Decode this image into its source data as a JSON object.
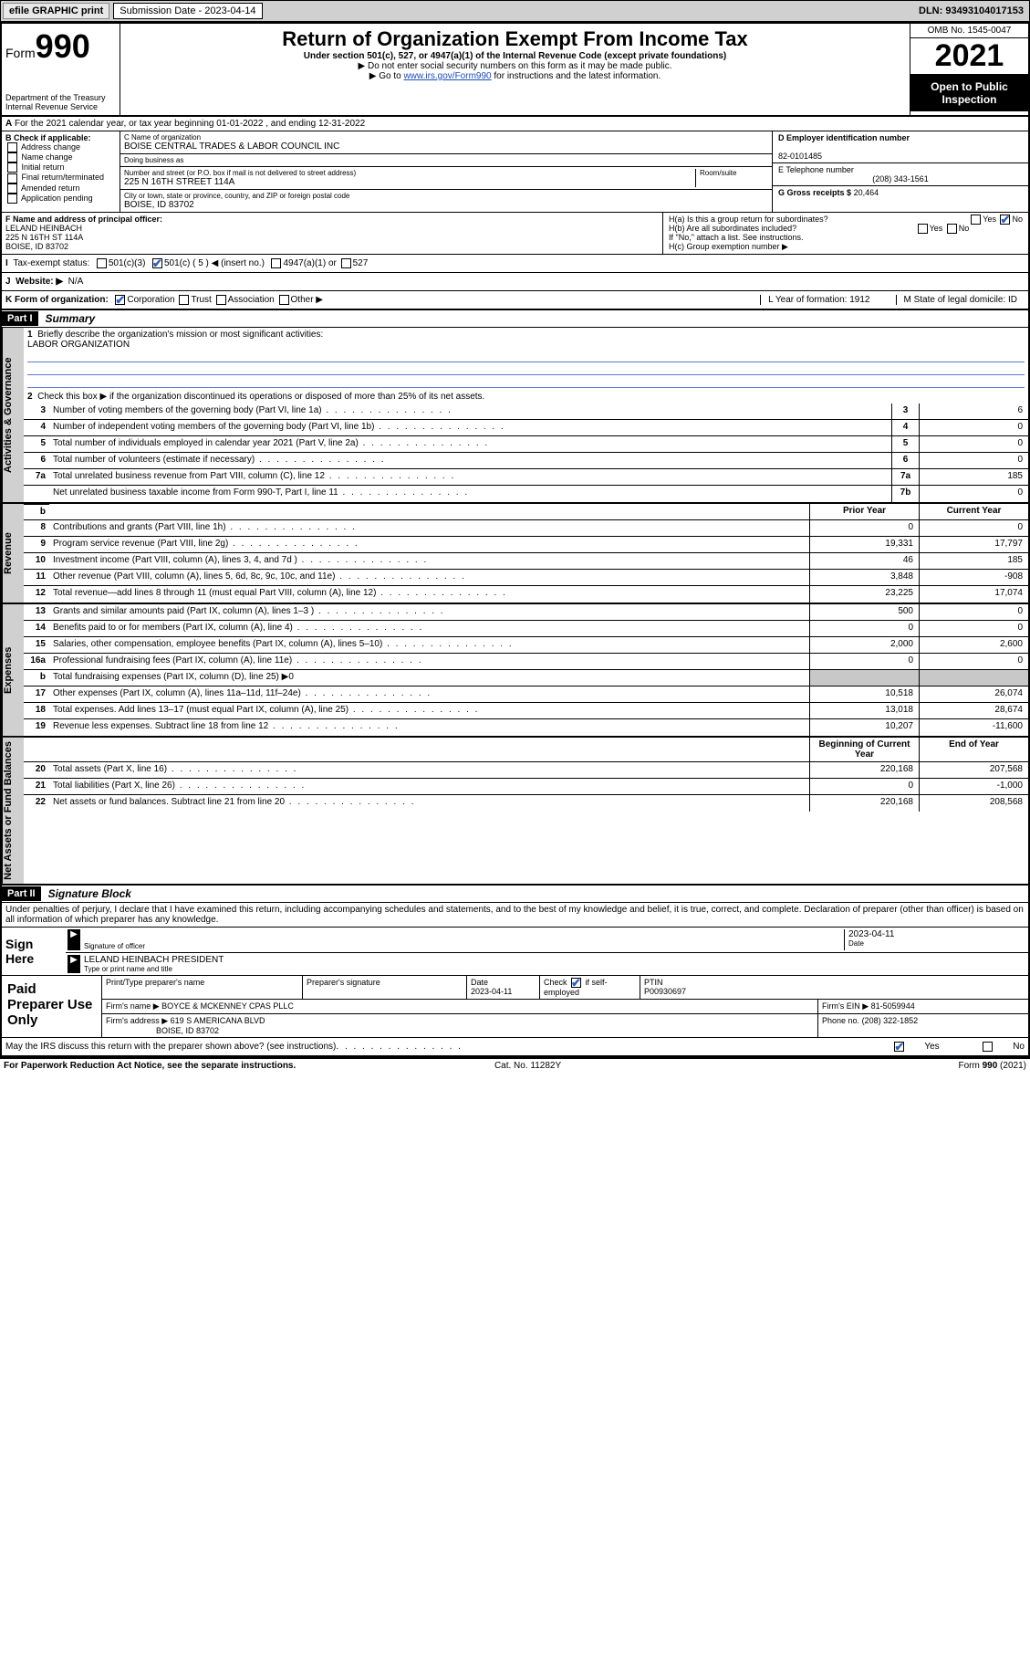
{
  "topbar": {
    "efile": "efile GRAPHIC print",
    "submission_label": "Submission Date - 2023-04-14",
    "dln": "DLN: 93493104017153"
  },
  "header": {
    "form_label": "Form",
    "form_number": "990",
    "dept": "Department of the Treasury",
    "irs": "Internal Revenue Service",
    "title": "Return of Organization Exempt From Income Tax",
    "subtitle": "Under section 501(c), 527, or 4947(a)(1) of the Internal Revenue Code (except private foundations)",
    "note1": "▶ Do not enter social security numbers on this form as it may be made public.",
    "note2_a": "▶ Go to ",
    "note2_link": "www.irs.gov/Form990",
    "note2_b": " for instructions and the latest information.",
    "omb": "OMB No. 1545-0047",
    "year": "2021",
    "open_public": "Open to Public Inspection"
  },
  "row_a": "For the 2021 calendar year, or tax year beginning 01-01-2022   , and ending 12-31-2022",
  "col_b": {
    "label": "B Check if applicable:",
    "opts": [
      "Address change",
      "Name change",
      "Initial return",
      "Final return/terminated",
      "Amended return",
      "Application pending"
    ]
  },
  "col_c": {
    "name_lbl": "C Name of organization",
    "name_val": "BOISE CENTRAL TRADES & LABOR COUNCIL INC",
    "dba_lbl": "Doing business as",
    "dba_val": "",
    "street_lbl": "Number and street (or P.O. box if mail is not delivered to street address)",
    "room_lbl": "Room/suite",
    "street_val": "225 N 16TH STREET 114A",
    "city_lbl": "City or town, state or province, country, and ZIP or foreign postal code",
    "city_val": "BOISE, ID  83702"
  },
  "col_d": {
    "ein_lbl": "D Employer identification number",
    "ein_val": "82-0101485",
    "tel_lbl": "E Telephone number",
    "tel_val": "(208) 343-1561",
    "gross_lbl": "G Gross receipts $",
    "gross_val": "20,464"
  },
  "row_f": {
    "lbl": "F Name and address of principal officer:",
    "name": "LELAND HEINBACH",
    "street": "225 N 16TH ST 114A",
    "city": "BOISE, ID  83702"
  },
  "row_h": {
    "ha": "H(a)  Is this a group return for subordinates?",
    "hb": "H(b)  Are all subordinates included?",
    "hb_note": "If \"No,\" attach a list. See instructions.",
    "hc": "H(c)  Group exemption number ▶"
  },
  "row_i": {
    "lbl": "Tax-exempt status:",
    "o1": "501(c)(3)",
    "o2": "501(c) ( 5 ) ◀ (insert no.)",
    "o3": "4947(a)(1) or",
    "o4": "527"
  },
  "row_j": {
    "lbl": "Website: ▶",
    "val": "N/A"
  },
  "row_k": {
    "lbl": "K Form of organization:",
    "opts": [
      "Corporation",
      "Trust",
      "Association",
      "Other ▶"
    ],
    "l_lbl": "L Year of formation: 1912",
    "m_lbl": "M State of legal domicile: ID"
  },
  "part1": {
    "hdr": "Part I",
    "title": "Summary"
  },
  "summary": {
    "tab1": "Activities & Governance",
    "tab2": "Revenue",
    "tab3": "Expenses",
    "tab4": "Net Assets or Fund Balances",
    "l1": "Briefly describe the organization's mission or most significant activities:",
    "l1_val": "LABOR ORGANIZATION",
    "l2": "Check this box ▶         if the organization discontinued its operations or disposed of more than 25% of its net assets.",
    "lines_gov": [
      {
        "n": "3",
        "d": "Number of voting members of the governing body (Part VI, line 1a)",
        "box": "3",
        "v": "6"
      },
      {
        "n": "4",
        "d": "Number of independent voting members of the governing body (Part VI, line 1b)",
        "box": "4",
        "v": "0"
      },
      {
        "n": "5",
        "d": "Total number of individuals employed in calendar year 2021 (Part V, line 2a)",
        "box": "5",
        "v": "0"
      },
      {
        "n": "6",
        "d": "Total number of volunteers (estimate if necessary)",
        "box": "6",
        "v": "0"
      },
      {
        "n": "7a",
        "d": "Total unrelated business revenue from Part VIII, column (C), line 12",
        "box": "7a",
        "v": "185"
      },
      {
        "n": "",
        "d": "Net unrelated business taxable income from Form 990-T, Part I, line 11",
        "box": "7b",
        "v": "0"
      }
    ],
    "col_hdr_prior": "Prior Year",
    "col_hdr_curr": "Current Year",
    "lines_rev": [
      {
        "n": "8",
        "d": "Contributions and grants (Part VIII, line 1h)",
        "p": "0",
        "c": "0"
      },
      {
        "n": "9",
        "d": "Program service revenue (Part VIII, line 2g)",
        "p": "19,331",
        "c": "17,797"
      },
      {
        "n": "10",
        "d": "Investment income (Part VIII, column (A), lines 3, 4, and 7d )",
        "p": "46",
        "c": "185"
      },
      {
        "n": "11",
        "d": "Other revenue (Part VIII, column (A), lines 5, 6d, 8c, 9c, 10c, and 11e)",
        "p": "3,848",
        "c": "-908"
      },
      {
        "n": "12",
        "d": "Total revenue—add lines 8 through 11 (must equal Part VIII, column (A), line 12)",
        "p": "23,225",
        "c": "17,074"
      }
    ],
    "lines_exp": [
      {
        "n": "13",
        "d": "Grants and similar amounts paid (Part IX, column (A), lines 1–3 )",
        "p": "500",
        "c": "0"
      },
      {
        "n": "14",
        "d": "Benefits paid to or for members (Part IX, column (A), line 4)",
        "p": "0",
        "c": "0"
      },
      {
        "n": "15",
        "d": "Salaries, other compensation, employee benefits (Part IX, column (A), lines 5–10)",
        "p": "2,000",
        "c": "2,600"
      },
      {
        "n": "16a",
        "d": "Professional fundraising fees (Part IX, column (A), line 11e)",
        "p": "0",
        "c": "0"
      },
      {
        "n": "b",
        "d": "Total fundraising expenses (Part IX, column (D), line 25) ▶0",
        "p": "",
        "c": "",
        "shade": true
      },
      {
        "n": "17",
        "d": "Other expenses (Part IX, column (A), lines 11a–11d, 11f–24e)",
        "p": "10,518",
        "c": "26,074"
      },
      {
        "n": "18",
        "d": "Total expenses. Add lines 13–17 (must equal Part IX, column (A), line 25)",
        "p": "13,018",
        "c": "28,674"
      },
      {
        "n": "19",
        "d": "Revenue less expenses. Subtract line 18 from line 12",
        "p": "10,207",
        "c": "-11,600"
      }
    ],
    "col_hdr_beg": "Beginning of Current Year",
    "col_hdr_end": "End of Year",
    "lines_net contrary": [
      {
        "n": "20",
        "d": "Total assets (Part X, line 16)",
        "p": "220,168",
        "c": "207,568"
      },
      {
        "n": "21",
        "d": "Total liabilities (Part X, line 26)",
        "p": "0",
        "c": "-1,000"
      },
      {
        "n": "22",
        "d": "Net assets or fund balances. Subtract line 21 from line 20",
        "p": "220,168",
        "c": "208,568"
      }
    ],
    "lines_net": [
      {
        "n": "20",
        "d": "Total assets (Part X, line 16)",
        "p": "220,168",
        "c": "207,568"
      },
      {
        "n": "21",
        "d": "Total liabilities (Part X, line 26)",
        "p": "0",
        "c": "-1,000"
      },
      {
        "n": "22",
        "d": "Net assets or fund balances. Subtract line 21 from line 20",
        "p": "220,168",
        "c": "208,568"
      }
    ]
  },
  "part2": {
    "hdr": "Part II",
    "title": "Signature Block"
  },
  "penalties": "Under penalties of perjury, I declare that I have examined this return, including accompanying schedules and statements, and to the best of my knowledge and belief, it is true, correct, and complete. Declaration of preparer (other than officer) is based on all information of which preparer has any knowledge.",
  "sign": {
    "lbl": "Sign Here",
    "sig_officer": "Signature of officer",
    "date": "2023-04-11",
    "date_lbl": "Date",
    "name": "LELAND HEINBACH  PRESIDENT",
    "name_lbl": "Type or print name and title"
  },
  "prep": {
    "lbl": "Paid Preparer Use Only",
    "h1": "Print/Type preparer's name",
    "h2": "Preparer's signature",
    "h3": "Date",
    "h3v": "2023-04-11",
    "h4": "Check          if self-employed",
    "h5": "PTIN",
    "h5v": "P00930697",
    "firm_name_lbl": "Firm's name     ▶",
    "firm_name": "BOYCE & MCKENNEY CPAS PLLC",
    "firm_ein_lbl": "Firm's EIN ▶",
    "firm_ein": "81-5059944",
    "firm_addr_lbl": "Firm's address ▶",
    "firm_addr1": "619 S AMERICANA BLVD",
    "firm_addr2": "BOISE, ID  83702",
    "phone_lbl": "Phone no.",
    "phone": "(208) 322-1852"
  },
  "may_discuss": "May the IRS discuss this return with the preparer shown above? (see instructions)",
  "footer": {
    "left": "For Paperwork Reduction Act Notice, see the separate instructions.",
    "mid": "Cat. No. 11282Y",
    "right": "Form 990 (2021)"
  },
  "yes": "Yes",
  "no": "No"
}
